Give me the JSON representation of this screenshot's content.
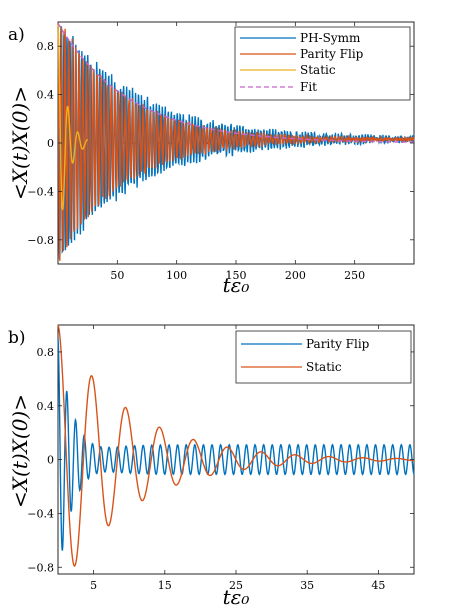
{
  "panels": [
    {
      "tag": "a)"
    },
    {
      "tag": "b)"
    }
  ],
  "chart_data": [
    {
      "type": "line",
      "panel": "a)",
      "xlabel": "tε₀",
      "ylabel": "<X(t)X(0)>",
      "xlim": [
        0,
        300
      ],
      "ylim": [
        -1,
        1
      ],
      "xticks": [
        50,
        100,
        150,
        200,
        250
      ],
      "yticks": [
        -0.8,
        -0.4,
        0,
        0.4,
        0.8
      ],
      "xtick_labels": [
        "50",
        "100",
        "150",
        "200",
        "250"
      ],
      "ytick_labels": [
        "−0.8",
        "−0.4",
        "0",
        "0.4",
        "0.8"
      ],
      "legend_position": "top-right",
      "series": [
        {
          "name": "PH-Symm",
          "color": "#0072BD",
          "style": "solid",
          "model": {
            "amp": 1.0,
            "decay": 65,
            "omega": 2.5,
            "offset": 0.03,
            "noise": 0.1,
            "x_start": 0,
            "x_end": 300
          }
        },
        {
          "name": "Parity Flip",
          "color": "#D95319",
          "style": "solid",
          "model": {
            "amp": 1.0,
            "decay": 55,
            "omega": 2.1,
            "offset": 0.03,
            "noise": 0.05,
            "x_start": 0,
            "x_end": 300
          }
        },
        {
          "name": "Static",
          "color": "#EDB120",
          "style": "solid",
          "model": {
            "amp": 0.98,
            "decay": 7,
            "omega": 0.75,
            "offset": 0.0,
            "noise": 0.0,
            "x_start": 0,
            "x_end": 25
          }
        },
        {
          "name": "Fit",
          "color": "#C267C8",
          "style": "dashed",
          "model": {
            "amp": 0.99,
            "decay": 60,
            "omega": 0,
            "offset": 0.0,
            "noise": 0.0,
            "x_start": 0,
            "x_end": 300
          }
        }
      ],
      "reference_line": {
        "y": 0,
        "color": "#D62728",
        "style": "dashed",
        "x_range": [
          0,
          150
        ]
      }
    },
    {
      "type": "line",
      "panel": "b)",
      "xlabel": "tε₀",
      "ylabel": "<X(t)X(0)>",
      "xlim": [
        0,
        50
      ],
      "ylim": [
        -0.85,
        1
      ],
      "xticks": [
        5,
        15,
        25,
        35,
        45
      ],
      "yticks": [
        -0.8,
        -0.4,
        0,
        0.4,
        0.8
      ],
      "xtick_labels": [
        "5",
        "15",
        "25",
        "35",
        "45"
      ],
      "ytick_labels": [
        "−0.8",
        "−0.4",
        "0",
        "0.4",
        "0.8"
      ],
      "legend_position": "top-right",
      "series": [
        {
          "name": "Parity Flip",
          "color": "#0072BD",
          "style": "solid",
          "model": {
            "amp": 0.9,
            "decay": 2.0,
            "omega": 5.0,
            "offset": 0.0,
            "tail_amp": 0.11,
            "tail_omega": 5.2,
            "noise": 0.0,
            "x_start": 0,
            "x_end": 50
          }
        },
        {
          "name": "Static",
          "color": "#D95319",
          "style": "solid",
          "model": {
            "amp": 1.0,
            "decay": 10,
            "omega": 1.32,
            "offset": 0.0,
            "noise": 0.0,
            "x_start": 0,
            "x_end": 50
          }
        }
      ]
    }
  ]
}
